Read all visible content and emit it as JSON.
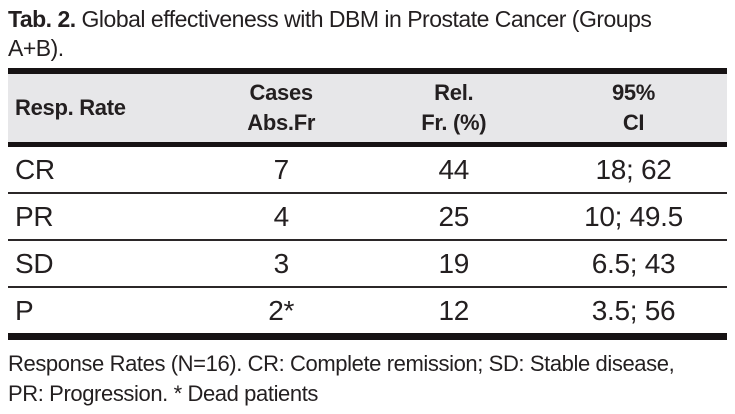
{
  "caption": {
    "label": "Tab. 2.",
    "line1_rest": "Global effectiveness with DBM in Prostate Cancer (Groups",
    "line2": "A+B)."
  },
  "columns": [
    {
      "line1": "Resp. Rate",
      "line2": ""
    },
    {
      "line1": "Cases",
      "line2": "Abs.Fr"
    },
    {
      "line1": "Rel.",
      "line2": "Fr. (%)"
    },
    {
      "line1": "95%",
      "line2": "CI"
    }
  ],
  "rows": [
    [
      "CR",
      "7",
      "44",
      "18; 62"
    ],
    [
      "PR",
      "4",
      "25",
      "10; 49.5"
    ],
    [
      "SD",
      "3",
      "19",
      "6.5; 43"
    ],
    [
      "P",
      "2*",
      "12",
      "3.5; 56"
    ]
  ],
  "footnote": {
    "line1": "Response Rates (N=16). CR: Complete remission; SD: Stable disease,",
    "line2": "PR: Progression. * Dead patients"
  },
  "colors": {
    "text": "#231f20",
    "header_bg": "#e7e7e9",
    "border_heavy": "#171314",
    "border_light": "#2b2728"
  }
}
